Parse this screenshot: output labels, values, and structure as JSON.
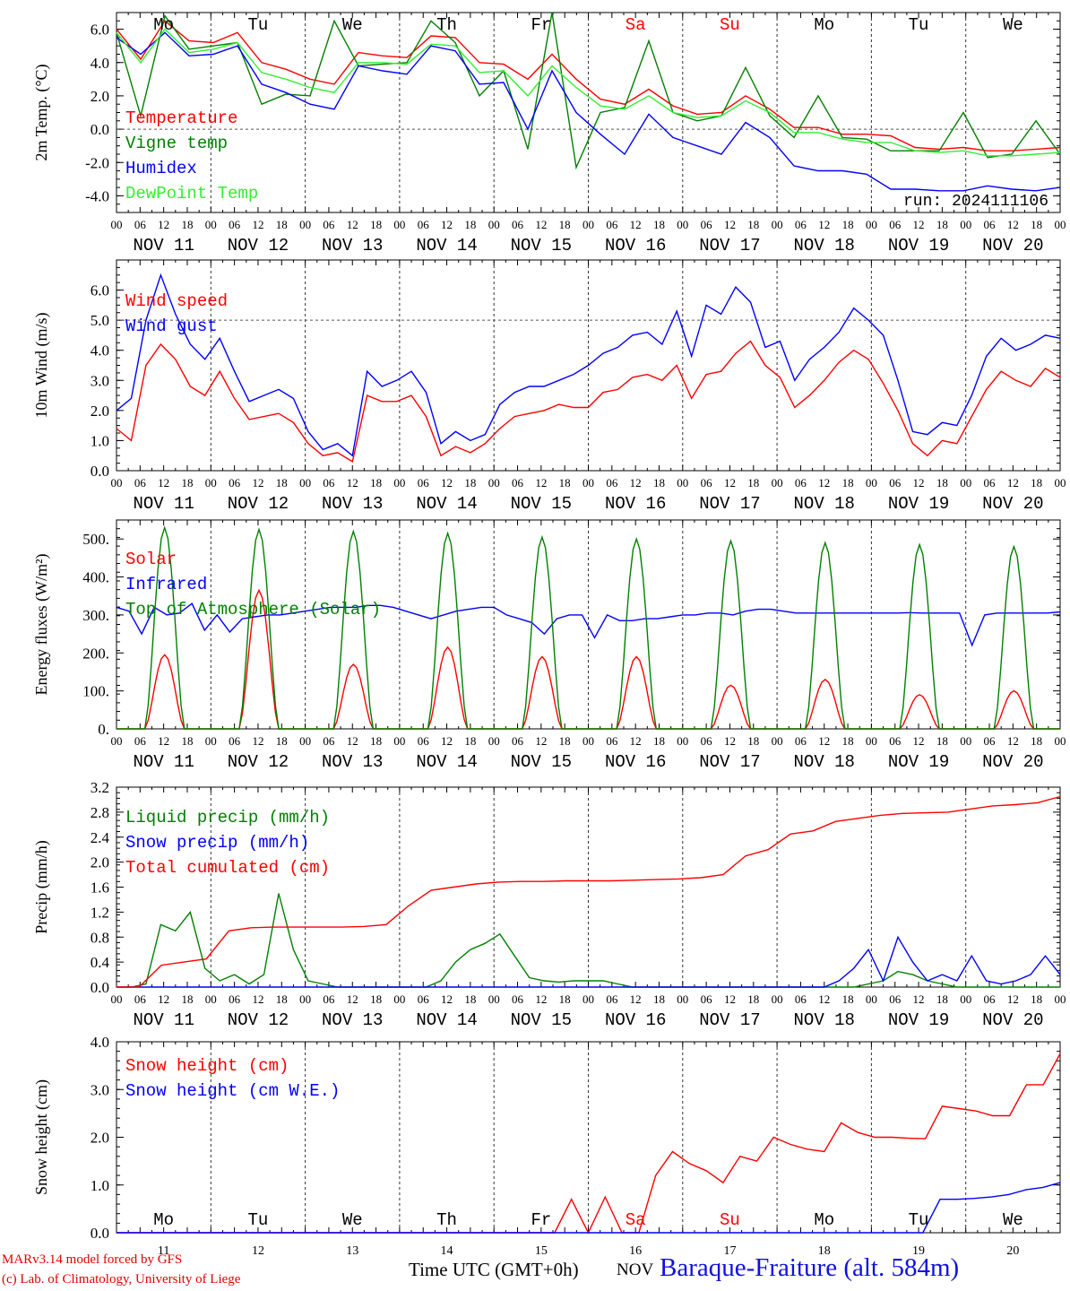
{
  "chart_data": [
    {
      "type": "line",
      "ylabel": "2m Temp. (°C)",
      "ylim": [
        -5,
        7
      ],
      "yticks": [
        "-4.0",
        "-2.0",
        "0.0",
        "2.0",
        "4.0",
        "6.0"
      ],
      "weekdays": [
        "Mo",
        "Tu",
        "We",
        "Th",
        "Fr",
        "Sa",
        "Su",
        "Mo",
        "Tu",
        "We"
      ],
      "run_label": "run: 2024111106",
      "series": [
        {
          "name": "Temperature",
          "color": "#ff0000",
          "values": [
            6.0,
            4.2,
            6.5,
            5.3,
            5.2,
            5.8,
            4.0,
            3.6,
            3.0,
            2.7,
            4.6,
            4.4,
            4.3,
            5.6,
            5.5,
            4.0,
            3.9,
            3.0,
            4.5,
            3.0,
            1.8,
            1.5,
            2.4,
            1.4,
            0.9,
            1.0,
            2.0,
            1.2,
            0.1,
            0.1,
            -0.3,
            -0.3,
            -0.4,
            -1.1,
            -1.2,
            -1.1,
            -1.3,
            -1.3,
            -1.2,
            -1.1
          ]
        },
        {
          "name": "Vigne temp",
          "color": "#008000",
          "values": [
            5.8,
            0.8,
            6.8,
            4.8,
            5.0,
            5.2,
            1.5,
            2.1,
            2.0,
            6.5,
            3.8,
            3.9,
            4.0,
            6.5,
            5.2,
            2.0,
            3.5,
            -1.2,
            7.0,
            -2.3,
            1.0,
            1.3,
            5.3,
            1.0,
            0.5,
            0.8,
            3.7,
            0.8,
            -0.5,
            2.0,
            -0.5,
            -0.6,
            -1.3,
            -1.3,
            -1.3,
            1.0,
            -1.7,
            -1.5,
            0.5,
            -1.5
          ]
        },
        {
          "name": "Humidex",
          "color": "#0000ff",
          "values": [
            5.5,
            4.5,
            5.8,
            4.4,
            4.5,
            5.0,
            2.7,
            2.2,
            1.5,
            1.2,
            3.8,
            3.5,
            3.3,
            5.0,
            4.7,
            2.7,
            2.8,
            0.0,
            3.5,
            1.0,
            -0.3,
            -1.5,
            0.9,
            -0.5,
            -1.0,
            -1.5,
            0.4,
            -0.5,
            -2.2,
            -2.5,
            -2.5,
            -2.7,
            -3.6,
            -3.6,
            -3.7,
            -3.7,
            -3.4,
            -3.6,
            -3.7,
            -3.5
          ]
        },
        {
          "name": "DewPoint Temp",
          "color": "#33ee33",
          "values": [
            5.8,
            4.0,
            6.0,
            4.6,
            4.8,
            5.2,
            3.4,
            3.0,
            2.5,
            2.2,
            4.0,
            4.0,
            3.9,
            5.1,
            5.0,
            3.4,
            3.5,
            2.0,
            3.8,
            2.5,
            1.4,
            1.2,
            2.0,
            1.0,
            0.7,
            0.8,
            1.7,
            1.0,
            -0.2,
            -0.2,
            -0.6,
            -0.8,
            -0.8,
            -1.3,
            -1.4,
            -1.3,
            -1.6,
            -1.6,
            -1.5,
            -1.4
          ]
        }
      ]
    },
    {
      "type": "line",
      "ylabel": "10m Wind (m/s)",
      "ylim": [
        0,
        7
      ],
      "yticks": [
        "0.0",
        "1.0",
        "2.0",
        "3.0",
        "4.0",
        "5.0",
        "6.0"
      ],
      "series": [
        {
          "name": "Wind speed",
          "color": "#ff0000",
          "values": [
            1.4,
            1.0,
            3.5,
            4.2,
            3.7,
            2.8,
            2.5,
            3.3,
            2.4,
            1.7,
            1.8,
            1.9,
            1.6,
            0.9,
            0.5,
            0.6,
            0.3,
            2.5,
            2.3,
            2.3,
            2.5,
            1.8,
            0.5,
            0.8,
            0.6,
            0.9,
            1.4,
            1.8,
            1.9,
            2.0,
            2.2,
            2.1,
            2.1,
            2.6,
            2.7,
            3.1,
            3.2,
            3.0,
            3.5,
            2.4,
            3.2,
            3.3,
            3.9,
            4.3,
            3.5,
            3.1,
            2.1,
            2.5,
            3.0,
            3.6,
            4.0,
            3.7,
            2.9,
            2.0,
            0.9,
            0.5,
            1.0,
            0.9,
            1.8,
            2.7,
            3.3,
            3.0,
            2.8,
            3.4,
            3.1
          ]
        },
        {
          "name": "Wind gust",
          "color": "#0000ff",
          "values": [
            2.0,
            2.4,
            5.0,
            6.5,
            5.2,
            4.2,
            3.7,
            4.4,
            3.3,
            2.3,
            2.5,
            2.7,
            2.4,
            1.3,
            0.7,
            0.9,
            0.5,
            3.3,
            2.8,
            3.0,
            3.3,
            2.6,
            0.9,
            1.3,
            1.0,
            1.2,
            2.2,
            2.6,
            2.8,
            2.8,
            3.0,
            3.2,
            3.5,
            3.9,
            4.1,
            4.5,
            4.6,
            4.2,
            5.3,
            3.8,
            5.5,
            5.2,
            6.1,
            5.6,
            4.1,
            4.3,
            3.0,
            3.7,
            4.1,
            4.6,
            5.4,
            5.0,
            4.5,
            3.0,
            1.3,
            1.2,
            1.6,
            1.5,
            2.5,
            3.8,
            4.4,
            4.0,
            4.2,
            4.5,
            4.4
          ]
        }
      ]
    },
    {
      "type": "line",
      "ylabel": "Energy fluxes (W/m²)",
      "ylim": [
        0,
        550
      ],
      "yticks": [
        "0.",
        "100.",
        "200.",
        "300.",
        "400.",
        "500."
      ],
      "series": [
        {
          "name": "Solar",
          "color": "#ff0000",
          "peaks": [
            195,
            365,
            170,
            215,
            190,
            190,
            115,
            130,
            90,
            100
          ]
        },
        {
          "name": "Infrared",
          "color": "#0000ff",
          "values": [
            320,
            310,
            250,
            320,
            300,
            305,
            330,
            260,
            300,
            255,
            290,
            295,
            300,
            300,
            305,
            310,
            315,
            320,
            320,
            320,
            325,
            325,
            320,
            310,
            300,
            290,
            300,
            310,
            315,
            320,
            320,
            300,
            290,
            280,
            250,
            290,
            300,
            300,
            240,
            300,
            285,
            285,
            290,
            290,
            295,
            300,
            300,
            305,
            305,
            300,
            310,
            315,
            315,
            310,
            305,
            305,
            305,
            305,
            305,
            305,
            305,
            305,
            305,
            306,
            305,
            305,
            305,
            305,
            220,
            300,
            305,
            305,
            305,
            305,
            305,
            308
          ]
        },
        {
          "name": "Top of Atmosphere (Solar)",
          "color": "#008000",
          "peaks": [
            530,
            525,
            520,
            515,
            505,
            500,
            495,
            490,
            485,
            480
          ]
        }
      ]
    },
    {
      "type": "line",
      "ylabel": "Precip (mm/h)",
      "ylim": [
        0,
        3.2
      ],
      "yticks": [
        "0.0",
        "0.4",
        "0.8",
        "1.2",
        "1.6",
        "2.0",
        "2.4",
        "2.8",
        "3.2"
      ],
      "series": [
        {
          "name": "Liquid precip (mm/h)",
          "color": "#008000",
          "values": [
            0,
            0,
            0.05,
            1.0,
            0.9,
            1.2,
            0.3,
            0.1,
            0.2,
            0.05,
            0.2,
            1.5,
            0.6,
            0.1,
            0.05,
            0,
            0,
            0,
            0,
            0,
            0,
            0,
            0.1,
            0.4,
            0.6,
            0.7,
            0.85,
            0.5,
            0.15,
            0.1,
            0.08,
            0.1,
            0.1,
            0.1,
            0.05,
            0,
            0,
            0,
            0,
            0,
            0,
            0,
            0,
            0,
            0,
            0,
            0,
            0,
            0,
            0,
            0,
            0.05,
            0.1,
            0.25,
            0.2,
            0.1,
            0.05,
            0,
            0,
            0,
            0,
            0,
            0,
            0,
            0
          ]
        },
        {
          "name": "Snow precip (mm/h)",
          "color": "#0000ff",
          "values": [
            0,
            0,
            0,
            0,
            0,
            0,
            0,
            0,
            0,
            0,
            0,
            0,
            0,
            0,
            0,
            0,
            0,
            0,
            0,
            0,
            0,
            0,
            0,
            0,
            0,
            0,
            0,
            0,
            0,
            0,
            0,
            0,
            0,
            0,
            0,
            0,
            0,
            0,
            0,
            0,
            0,
            0,
            0,
            0,
            0,
            0,
            0,
            0,
            0,
            0.1,
            0.3,
            0.6,
            0.1,
            0.8,
            0.4,
            0.1,
            0.2,
            0.1,
            0.5,
            0.1,
            0.05,
            0.1,
            0.2,
            0.5,
            0.2
          ]
        },
        {
          "name": "Total cumulated (cm)",
          "color": "#ff0000",
          "values": [
            0,
            0,
            0.35,
            0.4,
            0.45,
            0.9,
            0.95,
            0.96,
            0.96,
            0.96,
            0.96,
            0.97,
            1.0,
            1.3,
            1.55,
            1.6,
            1.65,
            1.68,
            1.69,
            1.69,
            1.7,
            1.7,
            1.7,
            1.71,
            1.72,
            1.73,
            1.75,
            1.8,
            2.1,
            2.2,
            2.45,
            2.5,
            2.65,
            2.7,
            2.75,
            2.78,
            2.79,
            2.8,
            2.85,
            2.9,
            2.92,
            2.95,
            3.05
          ]
        }
      ]
    },
    {
      "type": "line",
      "ylabel": "Snow height (cm)",
      "ylim": [
        0,
        4.0
      ],
      "yticks": [
        "0.0",
        "1.0",
        "2.0",
        "3.0",
        "4.0"
      ],
      "weekdays_bottom": [
        "Mo",
        "Tu",
        "We",
        "Th",
        "Fr",
        "Sa",
        "Su",
        "Mo",
        "Tu",
        "We"
      ],
      "day_numbers": [
        "11",
        "12",
        "13",
        "14",
        "15",
        "16",
        "17",
        "18",
        "19",
        "20"
      ],
      "series": [
        {
          "name": "Snow height (cm)",
          "color": "#ff0000",
          "values": [
            0,
            0,
            0,
            0,
            0,
            0,
            0,
            0,
            0,
            0,
            0,
            0,
            0,
            0,
            0,
            0,
            0,
            0,
            0,
            0,
            0,
            0,
            0,
            0,
            0,
            0,
            0,
            0.7,
            0,
            0.75,
            0,
            0,
            1.2,
            1.7,
            1.45,
            1.3,
            1.05,
            1.6,
            1.5,
            2.0,
            1.85,
            1.75,
            1.7,
            2.3,
            2.1,
            2.0,
            2.0,
            1.98,
            1.97,
            2.65,
            2.6,
            2.55,
            2.45,
            2.45,
            3.1,
            3.1,
            3.75
          ]
        },
        {
          "name": "Snow height (cm W.E.)",
          "color": "#0000ff",
          "values": [
            0,
            0,
            0,
            0,
            0,
            0,
            0,
            0,
            0,
            0,
            0,
            0,
            0,
            0,
            0,
            0,
            0,
            0,
            0,
            0,
            0,
            0,
            0,
            0,
            0,
            0,
            0,
            0,
            0,
            0,
            0,
            0,
            0,
            0,
            0,
            0,
            0,
            0,
            0,
            0,
            0,
            0,
            0,
            0,
            0,
            0,
            0,
            0,
            0.7,
            0.7,
            0.72,
            0.75,
            0.8,
            0.9,
            0.95,
            1.05
          ]
        }
      ]
    }
  ],
  "x_axis": {
    "hour_labels": [
      "00",
      "06",
      "12",
      "18"
    ],
    "final_hour": "00",
    "date_labels": [
      "NOV 11",
      "NOV 12",
      "NOV 13",
      "NOV 14",
      "NOV 15",
      "NOV 16",
      "NOV 17",
      "NOV 18",
      "NOV 19",
      "NOV 20"
    ],
    "weekend_color": "#ff0000",
    "weekend_days": [
      5,
      6
    ]
  },
  "footer": {
    "credit_line1": "MARv3.14 model forced by GFS",
    "credit_line2": "(c) Lab. of Climatology, University of Liege",
    "xlabel": "Time UTC (GMT+0h)",
    "month": "NOV",
    "station": "Baraque-Fraiture (alt. 584m)"
  }
}
